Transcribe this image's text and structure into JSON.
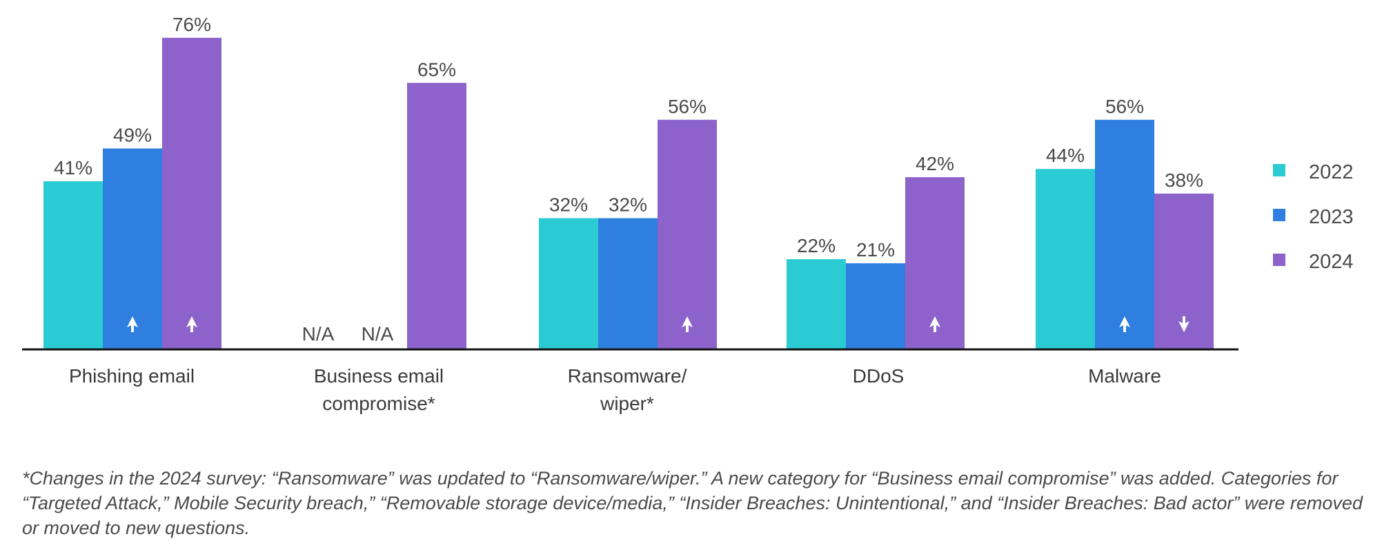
{
  "chart_data": {
    "type": "bar",
    "categories": [
      [
        "Phishing email"
      ],
      [
        "Business email",
        "compromise*"
      ],
      [
        "Ransomware/",
        "wiper*"
      ],
      [
        "DDoS"
      ],
      [
        "Malware"
      ]
    ],
    "series": [
      {
        "name": "2022",
        "color": "#2acbd3",
        "values": [
          41,
          null,
          32,
          22,
          44
        ]
      },
      {
        "name": "2023",
        "color": "#2f7fe0",
        "values": [
          49,
          null,
          32,
          21,
          56
        ]
      },
      {
        "name": "2024",
        "color": "#8d62cb",
        "values": [
          76,
          65,
          56,
          42,
          38
        ]
      }
    ],
    "value_labels": [
      [
        "41%",
        "N/A",
        "32%",
        "22%",
        "44%"
      ],
      [
        "49%",
        "N/A",
        "32%",
        "21%",
        "56%"
      ],
      [
        "76%",
        "65%",
        "56%",
        "42%",
        "38%"
      ]
    ],
    "trend_arrows": [
      [
        null,
        null,
        null,
        null,
        null
      ],
      [
        "up",
        null,
        null,
        null,
        "up"
      ],
      [
        "up",
        null,
        "up",
        "up",
        "down"
      ]
    ],
    "ylim": [
      0,
      80
    ],
    "title": "",
    "xlabel": "",
    "ylabel": "",
    "grid": false,
    "legend_position": "right"
  },
  "footnote": "*Changes in the 2024 survey: “Ransomware” was updated to “Ransomware/wiper.” A new category for “Business email compromise” was added. Categories for “Targeted Attack,” Mobile Security breach,” “Removable storage device/media,” “Insider Breaches: Unintentional,” and “Insider Breaches: Bad actor” were removed or moved to new questions."
}
